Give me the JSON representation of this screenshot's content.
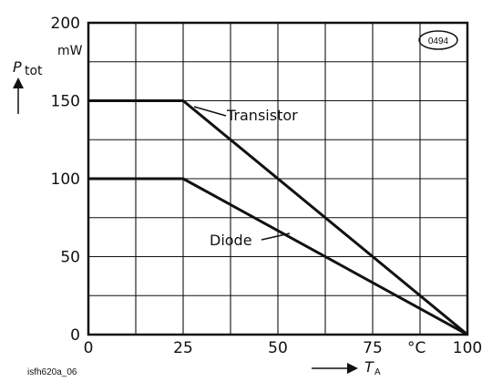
{
  "chart_data": {
    "type": "line",
    "xlim": [
      0,
      100
    ],
    "ylim": [
      0,
      200
    ],
    "x_ticks": [
      "0",
      "25",
      "50",
      "75",
      "100"
    ],
    "y_ticks": [
      "0",
      "50",
      "100",
      "150",
      "200"
    ],
    "x_unit": "°C",
    "y_unit": "mW",
    "ylabel_main": "P",
    "ylabel_sub": "tot",
    "xlabel_main": "T",
    "xlabel_sub": "A",
    "grid": true,
    "series": [
      {
        "name": "Transistor",
        "x": [
          0,
          25,
          100
        ],
        "y": [
          150,
          150,
          0
        ]
      },
      {
        "name": "Diode",
        "x": [
          0,
          25,
          100
        ],
        "y": [
          100,
          100,
          0
        ]
      }
    ],
    "annotations": {
      "badge": "0494",
      "figure_id": "isfh620a_06"
    }
  }
}
